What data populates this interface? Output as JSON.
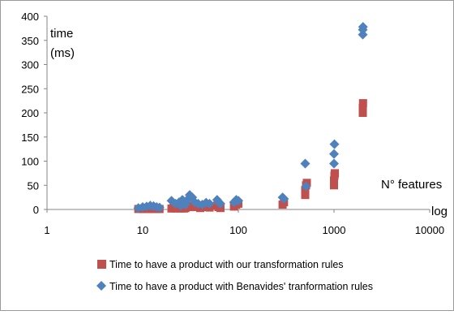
{
  "chart_data": {
    "type": "scatter",
    "x_scale": "log",
    "xlim": [
      1,
      10000
    ],
    "ylim": [
      0,
      400
    ],
    "x_ticks": [
      "1",
      "10",
      "100",
      "1000",
      "10000"
    ],
    "y_ticks": [
      "0",
      "50",
      "100",
      "150",
      "200",
      "250",
      "300",
      "350",
      "400"
    ],
    "ylabel_lines": [
      "time",
      "(ms)"
    ],
    "xlabel": "N° features",
    "xlabel_suffix": "log",
    "grid": false,
    "legend_position": "bottom",
    "series": [
      {
        "name": "Time to have a product with our transformation  rules",
        "marker": "square",
        "color": "#c0504d",
        "points": [
          [
            9,
            1
          ],
          [
            10,
            2
          ],
          [
            10,
            1
          ],
          [
            11,
            1
          ],
          [
            12,
            2
          ],
          [
            12,
            1
          ],
          [
            13,
            1
          ],
          [
            14,
            1
          ],
          [
            15,
            1
          ],
          [
            20,
            2
          ],
          [
            21,
            3
          ],
          [
            22,
            2
          ],
          [
            24,
            4
          ],
          [
            25,
            2
          ],
          [
            27,
            2
          ],
          [
            28,
            3
          ],
          [
            30,
            5
          ],
          [
            32,
            7
          ],
          [
            35,
            5
          ],
          [
            40,
            3
          ],
          [
            45,
            5
          ],
          [
            50,
            4
          ],
          [
            60,
            8
          ],
          [
            62,
            5
          ],
          [
            65,
            3
          ],
          [
            90,
            6
          ],
          [
            95,
            10
          ],
          [
            100,
            12
          ],
          [
            290,
            10
          ],
          [
            300,
            15
          ],
          [
            500,
            30
          ],
          [
            500,
            40
          ],
          [
            510,
            50
          ],
          [
            520,
            55
          ],
          [
            1000,
            50
          ],
          [
            1000,
            60
          ],
          [
            1010,
            70
          ],
          [
            1020,
            75
          ],
          [
            2000,
            200
          ],
          [
            2000,
            210
          ],
          [
            2010,
            220
          ]
        ]
      },
      {
        "name": "Time to have a product with Benavides' tranformation rules",
        "marker": "diamond",
        "color": "#4f81bd",
        "points": [
          [
            9,
            3
          ],
          [
            10,
            5
          ],
          [
            11,
            6
          ],
          [
            12,
            8
          ],
          [
            13,
            7
          ],
          [
            14,
            5
          ],
          [
            15,
            4
          ],
          [
            20,
            18
          ],
          [
            22,
            12
          ],
          [
            24,
            15
          ],
          [
            25,
            8
          ],
          [
            26,
            20
          ],
          [
            28,
            10
          ],
          [
            30,
            22
          ],
          [
            31,
            30
          ],
          [
            33,
            25
          ],
          [
            35,
            15
          ],
          [
            38,
            12
          ],
          [
            42,
            10
          ],
          [
            46,
            14
          ],
          [
            50,
            12
          ],
          [
            60,
            20
          ],
          [
            62,
            15
          ],
          [
            65,
            12
          ],
          [
            90,
            15
          ],
          [
            95,
            20
          ],
          [
            100,
            18
          ],
          [
            290,
            25
          ],
          [
            300,
            22
          ],
          [
            500,
            95
          ],
          [
            510,
            48
          ],
          [
            1000,
            95
          ],
          [
            1000,
            115
          ],
          [
            1010,
            135
          ],
          [
            2000,
            362
          ],
          [
            2000,
            372
          ],
          [
            2010,
            378
          ]
        ]
      }
    ]
  }
}
